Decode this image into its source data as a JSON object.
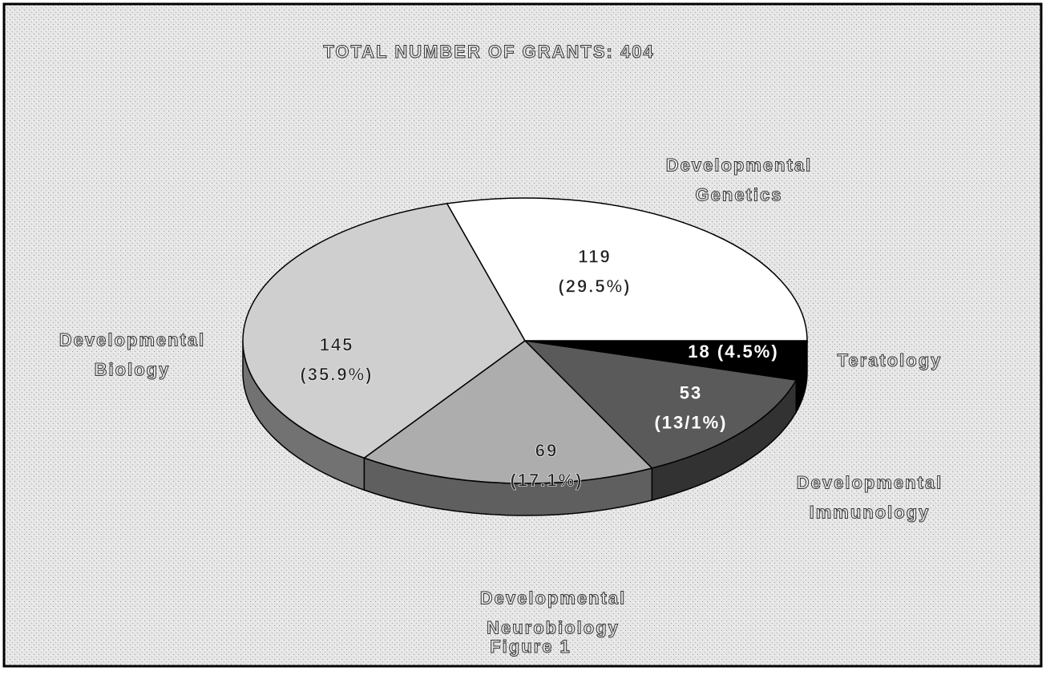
{
  "chart_data": {
    "type": "pie",
    "title": "TOTAL NUMBER OF GRANTS:  404",
    "caption": "Figure 1",
    "categories": [
      "Teratology",
      "Developmental\nImmunology",
      "Developmental\nNeurobiology",
      "Developmental\nBiology",
      "Developmental\nGenetics"
    ],
    "values": [
      18,
      53,
      69,
      145,
      119
    ],
    "value_labels": [
      "18 (4.5%)",
      "53\n(13/1%)",
      "69\n(17.1%)",
      "145\n(35.9%)",
      "119\n(29.5%)"
    ],
    "colors": [
      "#000000",
      "#5a5a5a",
      "#adadad",
      "#cfcfcf",
      "#ffffff"
    ]
  }
}
